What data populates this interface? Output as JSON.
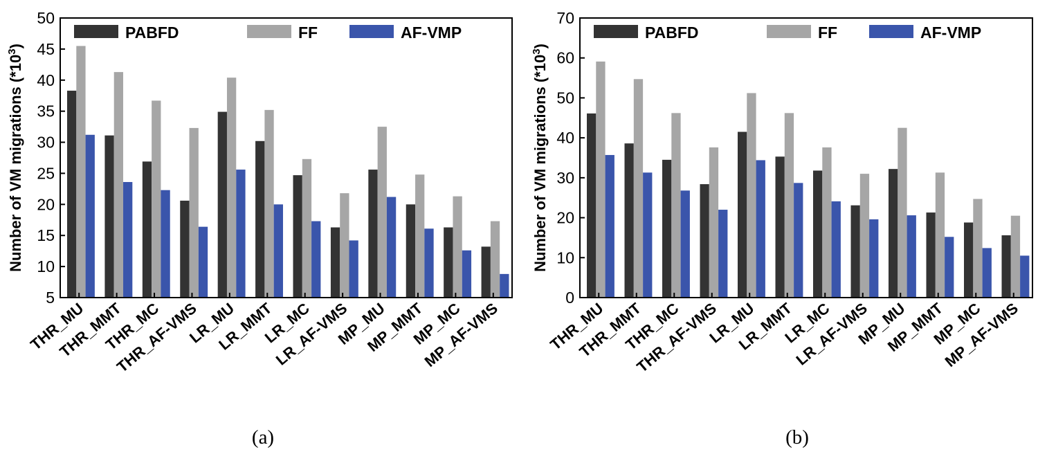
{
  "colors": {
    "series": [
      "#333333",
      "#a6a6a6",
      "#3a55ab"
    ],
    "axis": "#000000"
  },
  "chart_data": [
    {
      "type": "bar",
      "panel_caption": "(a)",
      "ylabel_main": "Number of VM migrations (*10",
      "ylabel_sup": "3",
      "ylabel_close": ")",
      "ylim": [
        5,
        50
      ],
      "yticks": [
        5,
        10,
        15,
        20,
        25,
        30,
        35,
        40,
        45,
        50
      ],
      "legend_position": "top",
      "categories": [
        "THR_MU",
        "THR_MMT",
        "THR_MC",
        "THR_AF-VMS",
        "LR_MU",
        "LR_MMT",
        "LR_MC",
        "LR_AF-VMS",
        "MP_MU",
        "MP_MMT",
        "MP_MC",
        "MP_AF-VMS"
      ],
      "series": [
        {
          "name": "PABFD",
          "values": [
            38.3,
            31.1,
            26.9,
            20.6,
            34.9,
            30.2,
            24.7,
            16.3,
            25.6,
            20.0,
            16.3,
            13.2
          ]
        },
        {
          "name": "FF",
          "values": [
            45.5,
            41.3,
            36.7,
            32.3,
            40.4,
            35.2,
            27.3,
            21.8,
            32.5,
            24.8,
            21.3,
            17.3
          ]
        },
        {
          "name": "AF-VMP",
          "values": [
            31.2,
            23.6,
            22.3,
            16.4,
            25.6,
            20.0,
            17.3,
            14.2,
            21.2,
            16.1,
            12.6,
            8.8
          ]
        }
      ]
    },
    {
      "type": "bar",
      "panel_caption": "(b)",
      "ylabel_main": "Number of VM migrations (*10",
      "ylabel_sup": "3",
      "ylabel_close": ")",
      "ylim": [
        0,
        70
      ],
      "yticks": [
        0,
        10,
        20,
        30,
        40,
        50,
        60,
        70
      ],
      "legend_position": "top",
      "categories": [
        "THR_MU",
        "THR_MMT",
        "THR_MC",
        "THR_AF-VMS",
        "LR_MU",
        "LR_MMT",
        "LR_MC",
        "LR_AF-VMS",
        "MP_MU",
        "MP_MMT",
        "MP_MC",
        "MP_AF-VMS"
      ],
      "series": [
        {
          "name": "PABFD",
          "values": [
            46.1,
            38.6,
            34.5,
            28.4,
            41.5,
            35.3,
            31.8,
            23.1,
            32.2,
            21.3,
            18.8,
            15.6
          ]
        },
        {
          "name": "FF",
          "values": [
            59.1,
            54.7,
            46.2,
            37.6,
            51.2,
            46.2,
            37.6,
            31.0,
            42.5,
            31.3,
            24.7,
            20.5
          ]
        },
        {
          "name": "AF-VMP",
          "values": [
            35.7,
            31.3,
            26.8,
            22.0,
            34.4,
            28.7,
            24.1,
            19.6,
            20.6,
            15.2,
            12.4,
            10.5
          ]
        }
      ]
    }
  ]
}
